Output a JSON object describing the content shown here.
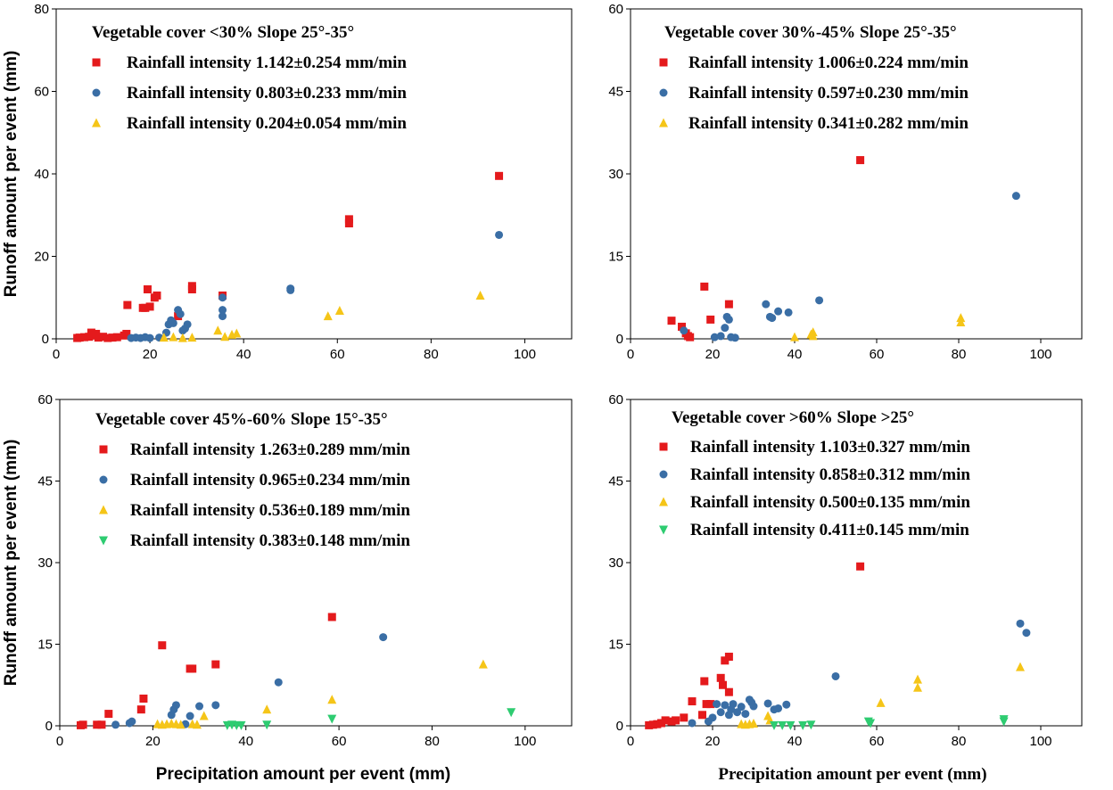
{
  "colors": {
    "s1": "#e41a1c",
    "s2": "#3a6ea5",
    "s3": "#f5c518",
    "s4": "#2ecc71"
  },
  "chart_data": [
    {
      "type": "scatter",
      "title": "Vegetable cover <30%  Slope 25°-35°",
      "xlabel": "",
      "ylabel": "Runoff amount per event (mm)",
      "xlim": [
        0,
        110
      ],
      "ylim": [
        0,
        80
      ],
      "xticks": [
        0,
        20,
        40,
        60,
        80,
        100
      ],
      "yticks": [
        0,
        20,
        40,
        60,
        80
      ],
      "series": [
        {
          "name": "Rainfall intensity 1.142±0.254 mm/min",
          "marker": "square",
          "color": "#e41a1c",
          "points": [
            [
              4.5,
              0.2
            ],
            [
              5,
              0.3
            ],
            [
              6,
              0.4
            ],
            [
              7,
              0.5
            ],
            [
              7.5,
              1.5
            ],
            [
              8,
              0.8
            ],
            [
              8.5,
              1.2
            ],
            [
              9,
              0.3
            ],
            [
              10,
              0.5
            ],
            [
              11,
              0.2
            ],
            [
              12,
              0.3
            ],
            [
              13,
              0.4
            ],
            [
              14.5,
              0.8
            ],
            [
              15,
              1.2
            ],
            [
              15.2,
              8.2
            ],
            [
              18.5,
              7.5
            ],
            [
              19,
              7.5
            ],
            [
              19.5,
              12
            ],
            [
              20,
              7.8
            ],
            [
              21,
              10
            ],
            [
              21.5,
              10.5
            ],
            [
              26,
              5.5
            ],
            [
              29,
              12
            ],
            [
              29,
              12.8
            ],
            [
              35.5,
              10.5
            ],
            [
              62.5,
              28
            ],
            [
              62.5,
              29
            ],
            [
              94.5,
              39.5
            ]
          ]
        },
        {
          "name": "Rainfall intensity 0.803±0.233 mm/min",
          "marker": "circle",
          "color": "#3a6ea5",
          "points": [
            [
              16,
              0.2
            ],
            [
              17,
              0.3
            ],
            [
              18,
              0.2
            ],
            [
              19,
              0.4
            ],
            [
              20,
              0.2
            ],
            [
              22,
              0.3
            ],
            [
              23.5,
              1.5
            ],
            [
              24,
              3.5
            ],
            [
              24.5,
              4.5
            ],
            [
              25,
              3.8
            ],
            [
              26,
              7
            ],
            [
              26.5,
              6
            ],
            [
              27,
              2
            ],
            [
              27.5,
              2.5
            ],
            [
              28,
              3.5
            ],
            [
              35.5,
              5.5
            ],
            [
              35.5,
              7
            ],
            [
              35.5,
              10
            ],
            [
              50,
              11.8
            ],
            [
              50,
              12.2
            ],
            [
              94.5,
              25.2
            ]
          ]
        },
        {
          "name": "Rainfall intensity 0.204±0.054 mm/min",
          "marker": "triangle",
          "color": "#f5c518",
          "points": [
            [
              23,
              0.3
            ],
            [
              25,
              0.4
            ],
            [
              27,
              0.2
            ],
            [
              29,
              0.3
            ],
            [
              34.5,
              2
            ],
            [
              36,
              0.5
            ],
            [
              37.5,
              1
            ],
            [
              38.5,
              1.3
            ],
            [
              58,
              5.5
            ],
            [
              60.5,
              6.8
            ],
            [
              90.5,
              10.5
            ]
          ]
        }
      ]
    },
    {
      "type": "scatter",
      "title": "Vegetable cover 30%-45%  Slope 25°-35°",
      "xlabel": "",
      "ylabel": "",
      "xlim": [
        0,
        110
      ],
      "ylim": [
        0,
        60
      ],
      "xticks": [
        0,
        20,
        40,
        60,
        80,
        100
      ],
      "yticks": [
        0,
        15,
        30,
        45,
        60
      ],
      "series": [
        {
          "name": "Rainfall intensity 1.006±0.224 mm/min",
          "marker": "square",
          "color": "#e41a1c",
          "points": [
            [
              10,
              3.3
            ],
            [
              12.5,
              2.2
            ],
            [
              13.5,
              1
            ],
            [
              14,
              0.5
            ],
            [
              14.5,
              0.3
            ],
            [
              18,
              9.5
            ],
            [
              19.5,
              3.5
            ],
            [
              24,
              6.3
            ],
            [
              56,
              32.5
            ]
          ]
        },
        {
          "name": "Rainfall intensity 0.597±0.230 mm/min",
          "marker": "circle",
          "color": "#3a6ea5",
          "points": [
            [
              13,
              1.5
            ],
            [
              20.5,
              0.3
            ],
            [
              22,
              0.5
            ],
            [
              23,
              2
            ],
            [
              23.5,
              4
            ],
            [
              24,
              3.5
            ],
            [
              24.5,
              0.3
            ],
            [
              25.5,
              0.2
            ],
            [
              33,
              6.3
            ],
            [
              34,
              4
            ],
            [
              34.5,
              3.8
            ],
            [
              36,
              5
            ],
            [
              38.5,
              4.8
            ],
            [
              46,
              7
            ],
            [
              94,
              26
            ]
          ]
        },
        {
          "name": "Rainfall intensity 0.341±0.282 mm/min",
          "marker": "triangle",
          "color": "#f5c518",
          "points": [
            [
              40,
              0.3
            ],
            [
              44,
              0.8
            ],
            [
              44.5,
              1.2
            ],
            [
              44.5,
              0.5
            ],
            [
              80.5,
              3.8
            ],
            [
              80.5,
              3
            ]
          ]
        }
      ]
    },
    {
      "type": "scatter",
      "title": "Vegetable cover 45%-60%  Slope 15°-35°",
      "xlabel": "Precipitation amount per event (mm)",
      "ylabel": "Runoff amount per event (mm)",
      "xlim": [
        0,
        110
      ],
      "ylim": [
        0,
        60
      ],
      "xticks": [
        0,
        20,
        40,
        60,
        80,
        100
      ],
      "yticks": [
        0,
        15,
        30,
        45,
        60
      ],
      "series": [
        {
          "name": "Rainfall intensity 1.263±0.289 mm/min",
          "marker": "square",
          "color": "#e41a1c",
          "points": [
            [
              4.5,
              0.1
            ],
            [
              5,
              0.2
            ],
            [
              8,
              0.2
            ],
            [
              9,
              0.2
            ],
            [
              10.5,
              2.2
            ],
            [
              17.5,
              3
            ],
            [
              18,
              5
            ],
            [
              22,
              14.8
            ],
            [
              28,
              10.5
            ],
            [
              28.5,
              10.5
            ],
            [
              33.5,
              11.3
            ],
            [
              58.5,
              20
            ]
          ]
        },
        {
          "name": "Rainfall intensity 0.965±0.234 mm/min",
          "marker": "circle",
          "color": "#3a6ea5",
          "points": [
            [
              12,
              0.2
            ],
            [
              15,
              0.5
            ],
            [
              15.5,
              0.8
            ],
            [
              24,
              2
            ],
            [
              24.5,
              3
            ],
            [
              25,
              3.8
            ],
            [
              27,
              0.3
            ],
            [
              28,
              1.8
            ],
            [
              30,
              3.6
            ],
            [
              33.5,
              3.8
            ],
            [
              47,
              8
            ],
            [
              69.5,
              16.3
            ]
          ]
        },
        {
          "name": "Rainfall intensity 0.536±0.189 mm/min",
          "marker": "triangle",
          "color": "#f5c518",
          "points": [
            [
              21,
              0.3
            ],
            [
              22,
              0.2
            ],
            [
              23,
              0.3
            ],
            [
              24,
              0.4
            ],
            [
              25,
              0.3
            ],
            [
              26,
              0.2
            ],
            [
              28.5,
              0.3
            ],
            [
              29.5,
              0.2
            ],
            [
              31,
              1.8
            ],
            [
              44.5,
              3
            ],
            [
              58.5,
              4.8
            ],
            [
              91,
              11.3
            ]
          ]
        },
        {
          "name": "Rainfall intensity 0.383±0.148 mm/min",
          "marker": "triangle-down",
          "color": "#2ecc71",
          "points": [
            [
              36,
              0.1
            ],
            [
              37,
              0.2
            ],
            [
              38,
              0.1
            ],
            [
              39,
              0.1
            ],
            [
              44.5,
              0.2
            ],
            [
              58.5,
              1.3
            ],
            [
              97,
              2.5
            ]
          ]
        }
      ]
    },
    {
      "type": "scatter",
      "title": "Vegetable cover >60%  Slope >25°",
      "xlabel": "Precipitation amount per event (mm)",
      "ylabel": "",
      "xlim": [
        0,
        110
      ],
      "ylim": [
        0,
        60
      ],
      "xticks": [
        0,
        20,
        40,
        60,
        80,
        100
      ],
      "yticks": [
        0,
        15,
        30,
        45,
        60
      ],
      "series": [
        {
          "name": "Rainfall intensity 1.103±0.327 mm/min",
          "marker": "square",
          "color": "#e41a1c",
          "points": [
            [
              4.5,
              0.1
            ],
            [
              5.5,
              0.2
            ],
            [
              6.5,
              0.3
            ],
            [
              7.5,
              0.5
            ],
            [
              8.5,
              1
            ],
            [
              10,
              0.8
            ],
            [
              11,
              1
            ],
            [
              13,
              1.5
            ],
            [
              15,
              4.5
            ],
            [
              17.5,
              2
            ],
            [
              18,
              8.2
            ],
            [
              18.5,
              4
            ],
            [
              19.5,
              4
            ],
            [
              22,
              8.8
            ],
            [
              22.5,
              7.5
            ],
            [
              23,
              12
            ],
            [
              24,
              12.7
            ],
            [
              24,
              6.2
            ],
            [
              56,
              29.3
            ]
          ]
        },
        {
          "name": "Rainfall intensity 0.858±0.312 mm/min",
          "marker": "circle",
          "color": "#3a6ea5",
          "points": [
            [
              15,
              0.5
            ],
            [
              19,
              0.8
            ],
            [
              20,
              1.5
            ],
            [
              21,
              4
            ],
            [
              22,
              2.5
            ],
            [
              23,
              3.8
            ],
            [
              24,
              2
            ],
            [
              24.5,
              3
            ],
            [
              25,
              4
            ],
            [
              26,
              2.5
            ],
            [
              27,
              3.5
            ],
            [
              28,
              2.2
            ],
            [
              29,
              4.8
            ],
            [
              29.5,
              4.3
            ],
            [
              30,
              3.6
            ],
            [
              33.5,
              4.1
            ],
            [
              35,
              3
            ],
            [
              36,
              3.2
            ],
            [
              38,
              3.9
            ],
            [
              50,
              9.1
            ],
            [
              95,
              18.8
            ],
            [
              96.5,
              17.1
            ]
          ]
        },
        {
          "name": "Rainfall intensity 0.500±0.135 mm/min",
          "marker": "triangle",
          "color": "#f5c518",
          "points": [
            [
              27,
              0.3
            ],
            [
              28,
              0.2
            ],
            [
              29,
              0.3
            ],
            [
              30,
              0.4
            ],
            [
              33.5,
              1.8
            ],
            [
              34,
              1
            ],
            [
              61,
              4.2
            ],
            [
              70,
              8.5
            ],
            [
              70,
              7
            ],
            [
              95,
              10.8
            ]
          ]
        },
        {
          "name": "Rainfall intensity 0.411±0.145 mm/min",
          "marker": "triangle-down",
          "color": "#2ecc71",
          "points": [
            [
              35,
              0.1
            ],
            [
              37,
              0.1
            ],
            [
              39,
              0.1
            ],
            [
              42,
              0.1
            ],
            [
              44,
              0.2
            ],
            [
              58,
              0.8
            ],
            [
              58.5,
              0.5
            ],
            [
              91,
              1.2
            ],
            [
              91,
              0.8
            ]
          ]
        }
      ]
    }
  ]
}
